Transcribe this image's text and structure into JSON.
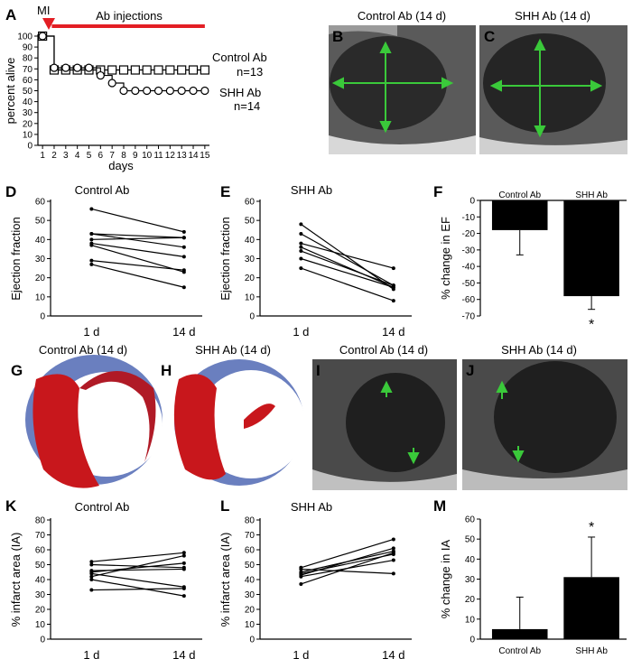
{
  "colors": {
    "red": "#e31e24",
    "green": "#3ac93a",
    "tissue_red": "#c8171c",
    "tissue_blue": "#6a7fbf",
    "bar": "#000000"
  },
  "image_panels": {
    "B": {
      "letter": "B",
      "title": "Control Ab (14 d)"
    },
    "C": {
      "letter": "C",
      "title": "SHH Ab (14 d)"
    },
    "G": {
      "letter": "G",
      "title": "Control Ab (14 d)"
    },
    "H": {
      "letter": "H",
      "title": "SHH Ab (14 d)"
    },
    "I": {
      "letter": "I",
      "title": "Control Ab (14 d)"
    },
    "J": {
      "letter": "J",
      "title": "SHH Ab (14 d)"
    }
  },
  "chart_data": [
    {
      "panel": "A",
      "type": "line",
      "xlabel": "days",
      "ylabel": "percent alive",
      "x_ticks": [
        1,
        2,
        3,
        4,
        5,
        6,
        7,
        8,
        9,
        10,
        11,
        12,
        13,
        14,
        15
      ],
      "y_ticks": [
        0,
        10,
        20,
        30,
        40,
        50,
        60,
        70,
        80,
        90,
        100
      ],
      "xlim": [
        0.6,
        15.4
      ],
      "ylim": [
        0,
        100
      ],
      "marker_annotation": "MI",
      "bar_annotation": "Ab injections",
      "bar_annotation_range": [
        1.8,
        15
      ],
      "series": [
        {
          "name": "Control Ab",
          "n_label": "n=13",
          "marker": "square",
          "x": [
            1,
            2,
            3,
            4,
            5,
            6,
            7,
            8,
            9,
            10,
            11,
            12,
            13,
            14,
            15
          ],
          "y": [
            100,
            69,
            69,
            69,
            69,
            69,
            69,
            69,
            69,
            69,
            69,
            69,
            69,
            69,
            69
          ]
        },
        {
          "name": "SHH Ab",
          "n_label": "n=14",
          "marker": "circle",
          "x": [
            1,
            2,
            3,
            4,
            5,
            6,
            7,
            8,
            9,
            10,
            11,
            12,
            13,
            14,
            15
          ],
          "y": [
            100,
            71,
            71,
            71,
            71,
            64,
            57,
            50,
            50,
            50,
            50,
            50,
            50,
            50,
            50
          ]
        }
      ]
    },
    {
      "panel": "D",
      "type": "line",
      "title": "Control Ab",
      "ylabel": "Ejection fraction",
      "categories": [
        "1 d",
        "14 d"
      ],
      "y_ticks": [
        0,
        10,
        20,
        30,
        40,
        50,
        60
      ],
      "ylim": [
        0,
        60
      ],
      "pairs": [
        [
          56,
          44
        ],
        [
          43,
          41
        ],
        [
          43,
          36
        ],
        [
          40,
          41
        ],
        [
          38,
          31
        ],
        [
          37,
          23
        ],
        [
          29,
          24
        ],
        [
          27,
          15
        ]
      ]
    },
    {
      "panel": "E",
      "type": "line",
      "title": "SHH Ab",
      "ylabel": "Ejection fraction",
      "categories": [
        "1 d",
        "14 d"
      ],
      "y_ticks": [
        0,
        10,
        20,
        30,
        40,
        50,
        60
      ],
      "ylim": [
        0,
        60
      ],
      "pairs": [
        [
          48,
          14
        ],
        [
          43,
          16
        ],
        [
          38,
          25
        ],
        [
          36,
          15
        ],
        [
          34,
          16
        ],
        [
          30,
          15
        ],
        [
          25,
          8
        ]
      ]
    },
    {
      "panel": "F",
      "type": "bar",
      "ylabel": "% change in EF",
      "categories": [
        "Control Ab",
        "SHH Ab"
      ],
      "values": [
        -18,
        -58
      ],
      "errors": [
        15,
        8
      ],
      "y_ticks": [
        0,
        -10,
        -20,
        -30,
        -40,
        -50,
        -60,
        -70
      ],
      "ylim": [
        -70,
        0
      ],
      "significance": "*"
    },
    {
      "panel": "K",
      "type": "line",
      "title": "Control Ab",
      "ylabel": "% infarct area (IA)",
      "categories": [
        "1 d",
        "14 d"
      ],
      "y_ticks": [
        0,
        10,
        20,
        30,
        40,
        50,
        60,
        70,
        80
      ],
      "ylim": [
        0,
        80
      ],
      "pairs": [
        [
          52,
          58
        ],
        [
          50,
          48
        ],
        [
          46,
          47
        ],
        [
          45,
          51
        ],
        [
          44,
          35
        ],
        [
          42,
          56
        ],
        [
          40,
          29
        ],
        [
          33,
          34
        ]
      ]
    },
    {
      "panel": "L",
      "type": "line",
      "title": "SHH Ab",
      "ylabel": "% infarct area (IA)",
      "categories": [
        "1 d",
        "14 d"
      ],
      "y_ticks": [
        0,
        10,
        20,
        30,
        40,
        50,
        60,
        70,
        80
      ],
      "ylim": [
        0,
        80
      ],
      "pairs": [
        [
          48,
          67
        ],
        [
          47,
          44
        ],
        [
          45,
          59
        ],
        [
          44,
          57
        ],
        [
          43,
          61
        ],
        [
          42,
          53
        ],
        [
          37,
          58
        ]
      ]
    },
    {
      "panel": "M",
      "type": "bar",
      "ylabel": "% change in IA",
      "categories": [
        "Control Ab",
        "SHH Ab"
      ],
      "values": [
        5,
        31
      ],
      "errors": [
        16,
        20
      ],
      "y_ticks": [
        0,
        10,
        20,
        30,
        40,
        50,
        60
      ],
      "ylim": [
        0,
        60
      ],
      "significance": "*"
    }
  ]
}
